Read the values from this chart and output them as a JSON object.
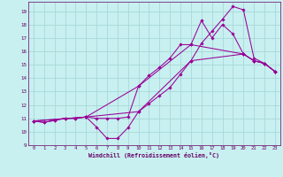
{
  "xlabel": "Windchill (Refroidissement éolien,°C)",
  "bg_color": "#c8f0f0",
  "grid_color": "#a8d8d8",
  "line_color": "#990099",
  "xlim": [
    -0.5,
    23.5
  ],
  "ylim": [
    9.0,
    19.7
  ],
  "xticks": [
    0,
    1,
    2,
    3,
    4,
    5,
    6,
    7,
    8,
    9,
    10,
    11,
    12,
    13,
    14,
    15,
    16,
    17,
    18,
    19,
    20,
    21,
    22,
    23
  ],
  "yticks": [
    9,
    10,
    11,
    12,
    13,
    14,
    15,
    16,
    17,
    18,
    19
  ],
  "lines": [
    {
      "x": [
        0,
        1,
        2,
        3,
        4,
        5,
        6,
        7,
        8,
        9,
        10,
        11,
        12,
        13,
        14,
        15,
        16,
        17,
        18,
        19,
        20,
        21,
        22,
        23
      ],
      "y": [
        10.8,
        10.7,
        10.85,
        11.0,
        11.0,
        11.1,
        10.35,
        9.5,
        9.5,
        10.3,
        11.5,
        12.1,
        12.7,
        13.3,
        14.3,
        15.3,
        16.6,
        17.5,
        18.4,
        19.35,
        19.1,
        15.5,
        15.1,
        14.5
      ]
    },
    {
      "x": [
        0,
        1,
        2,
        3,
        4,
        5,
        6,
        7,
        8,
        9,
        10,
        11,
        12,
        13,
        14,
        15,
        16,
        17,
        18,
        19,
        20,
        21,
        22,
        23
      ],
      "y": [
        10.8,
        10.7,
        10.85,
        11.0,
        11.0,
        11.1,
        11.0,
        11.0,
        11.0,
        11.1,
        13.4,
        14.2,
        14.8,
        15.5,
        16.5,
        16.5,
        18.3,
        17.0,
        18.0,
        17.3,
        15.8,
        15.3,
        15.1,
        14.5
      ]
    },
    {
      "x": [
        0,
        5,
        10,
        15,
        20,
        21,
        22,
        23
      ],
      "y": [
        10.8,
        11.1,
        11.5,
        15.3,
        15.8,
        15.3,
        15.1,
        14.5
      ]
    },
    {
      "x": [
        0,
        5,
        10,
        15,
        20,
        21,
        22,
        23
      ],
      "y": [
        10.8,
        11.1,
        13.4,
        16.5,
        15.8,
        15.3,
        15.1,
        14.5
      ]
    }
  ]
}
